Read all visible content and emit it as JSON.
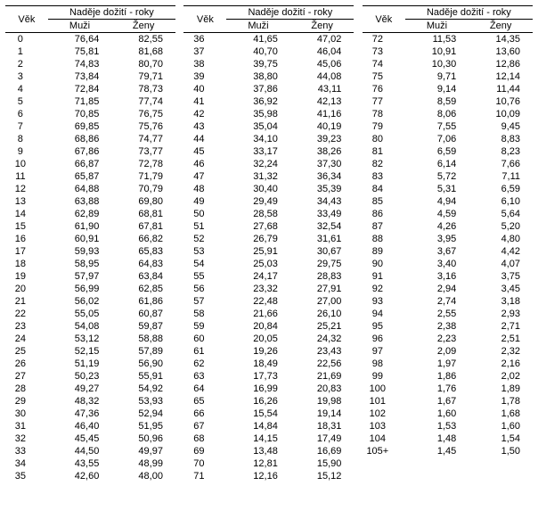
{
  "headers": {
    "age": "Věk",
    "group": "Naděje dožití - roky",
    "male": "Muži",
    "female": "Ženy"
  },
  "style": {
    "font_family": "Arial",
    "font_size_pt": 8.5,
    "border_color": "#000000",
    "background_color": "#ffffff",
    "text_color": "#000000"
  },
  "columns": [
    [
      {
        "age": "0",
        "m": "76,64",
        "f": "82,55"
      },
      {
        "age": "1",
        "m": "75,81",
        "f": "81,68"
      },
      {
        "age": "2",
        "m": "74,83",
        "f": "80,70"
      },
      {
        "age": "3",
        "m": "73,84",
        "f": "79,71"
      },
      {
        "age": "4",
        "m": "72,84",
        "f": "78,73"
      },
      {
        "age": "5",
        "m": "71,85",
        "f": "77,74"
      },
      {
        "age": "6",
        "m": "70,85",
        "f": "76,75"
      },
      {
        "age": "7",
        "m": "69,85",
        "f": "75,76"
      },
      {
        "age": "8",
        "m": "68,86",
        "f": "74,77"
      },
      {
        "age": "9",
        "m": "67,86",
        "f": "73,77"
      },
      {
        "age": "10",
        "m": "66,87",
        "f": "72,78"
      },
      {
        "age": "11",
        "m": "65,87",
        "f": "71,79"
      },
      {
        "age": "12",
        "m": "64,88",
        "f": "70,79"
      },
      {
        "age": "13",
        "m": "63,88",
        "f": "69,80"
      },
      {
        "age": "14",
        "m": "62,89",
        "f": "68,81"
      },
      {
        "age": "15",
        "m": "61,90",
        "f": "67,81"
      },
      {
        "age": "16",
        "m": "60,91",
        "f": "66,82"
      },
      {
        "age": "17",
        "m": "59,93",
        "f": "65,83"
      },
      {
        "age": "18",
        "m": "58,95",
        "f": "64,83"
      },
      {
        "age": "19",
        "m": "57,97",
        "f": "63,84"
      },
      {
        "age": "20",
        "m": "56,99",
        "f": "62,85"
      },
      {
        "age": "21",
        "m": "56,02",
        "f": "61,86"
      },
      {
        "age": "22",
        "m": "55,05",
        "f": "60,87"
      },
      {
        "age": "23",
        "m": "54,08",
        "f": "59,87"
      },
      {
        "age": "24",
        "m": "53,12",
        "f": "58,88"
      },
      {
        "age": "25",
        "m": "52,15",
        "f": "57,89"
      },
      {
        "age": "26",
        "m": "51,19",
        "f": "56,90"
      },
      {
        "age": "27",
        "m": "50,23",
        "f": "55,91"
      },
      {
        "age": "28",
        "m": "49,27",
        "f": "54,92"
      },
      {
        "age": "29",
        "m": "48,32",
        "f": "53,93"
      },
      {
        "age": "30",
        "m": "47,36",
        "f": "52,94"
      },
      {
        "age": "31",
        "m": "46,40",
        "f": "51,95"
      },
      {
        "age": "32",
        "m": "45,45",
        "f": "50,96"
      },
      {
        "age": "33",
        "m": "44,50",
        "f": "49,97"
      },
      {
        "age": "34",
        "m": "43,55",
        "f": "48,99"
      },
      {
        "age": "35",
        "m": "42,60",
        "f": "48,00"
      }
    ],
    [
      {
        "age": "36",
        "m": "41,65",
        "f": "47,02"
      },
      {
        "age": "37",
        "m": "40,70",
        "f": "46,04"
      },
      {
        "age": "38",
        "m": "39,75",
        "f": "45,06"
      },
      {
        "age": "39",
        "m": "38,80",
        "f": "44,08"
      },
      {
        "age": "40",
        "m": "37,86",
        "f": "43,11"
      },
      {
        "age": "41",
        "m": "36,92",
        "f": "42,13"
      },
      {
        "age": "42",
        "m": "35,98",
        "f": "41,16"
      },
      {
        "age": "43",
        "m": "35,04",
        "f": "40,19"
      },
      {
        "age": "44",
        "m": "34,10",
        "f": "39,23"
      },
      {
        "age": "45",
        "m": "33,17",
        "f": "38,26"
      },
      {
        "age": "46",
        "m": "32,24",
        "f": "37,30"
      },
      {
        "age": "47",
        "m": "31,32",
        "f": "36,34"
      },
      {
        "age": "48",
        "m": "30,40",
        "f": "35,39"
      },
      {
        "age": "49",
        "m": "29,49",
        "f": "34,43"
      },
      {
        "age": "50",
        "m": "28,58",
        "f": "33,49"
      },
      {
        "age": "51",
        "m": "27,68",
        "f": "32,54"
      },
      {
        "age": "52",
        "m": "26,79",
        "f": "31,61"
      },
      {
        "age": "53",
        "m": "25,91",
        "f": "30,67"
      },
      {
        "age": "54",
        "m": "25,03",
        "f": "29,75"
      },
      {
        "age": "55",
        "m": "24,17",
        "f": "28,83"
      },
      {
        "age": "56",
        "m": "23,32",
        "f": "27,91"
      },
      {
        "age": "57",
        "m": "22,48",
        "f": "27,00"
      },
      {
        "age": "58",
        "m": "21,66",
        "f": "26,10"
      },
      {
        "age": "59",
        "m": "20,84",
        "f": "25,21"
      },
      {
        "age": "60",
        "m": "20,05",
        "f": "24,32"
      },
      {
        "age": "61",
        "m": "19,26",
        "f": "23,43"
      },
      {
        "age": "62",
        "m": "18,49",
        "f": "22,56"
      },
      {
        "age": "63",
        "m": "17,73",
        "f": "21,69"
      },
      {
        "age": "64",
        "m": "16,99",
        "f": "20,83"
      },
      {
        "age": "65",
        "m": "16,26",
        "f": "19,98"
      },
      {
        "age": "66",
        "m": "15,54",
        "f": "19,14"
      },
      {
        "age": "67",
        "m": "14,84",
        "f": "18,31"
      },
      {
        "age": "68",
        "m": "14,15",
        "f": "17,49"
      },
      {
        "age": "69",
        "m": "13,48",
        "f": "16,69"
      },
      {
        "age": "70",
        "m": "12,81",
        "f": "15,90"
      },
      {
        "age": "71",
        "m": "12,16",
        "f": "15,12"
      }
    ],
    [
      {
        "age": "72",
        "m": "11,53",
        "f": "14,35"
      },
      {
        "age": "73",
        "m": "10,91",
        "f": "13,60"
      },
      {
        "age": "74",
        "m": "10,30",
        "f": "12,86"
      },
      {
        "age": "75",
        "m": "9,71",
        "f": "12,14"
      },
      {
        "age": "76",
        "m": "9,14",
        "f": "11,44"
      },
      {
        "age": "77",
        "m": "8,59",
        "f": "10,76"
      },
      {
        "age": "78",
        "m": "8,06",
        "f": "10,09"
      },
      {
        "age": "79",
        "m": "7,55",
        "f": "9,45"
      },
      {
        "age": "80",
        "m": "7,06",
        "f": "8,83"
      },
      {
        "age": "81",
        "m": "6,59",
        "f": "8,23"
      },
      {
        "age": "82",
        "m": "6,14",
        "f": "7,66"
      },
      {
        "age": "83",
        "m": "5,72",
        "f": "7,11"
      },
      {
        "age": "84",
        "m": "5,31",
        "f": "6,59"
      },
      {
        "age": "85",
        "m": "4,94",
        "f": "6,10"
      },
      {
        "age": "86",
        "m": "4,59",
        "f": "5,64"
      },
      {
        "age": "87",
        "m": "4,26",
        "f": "5,20"
      },
      {
        "age": "88",
        "m": "3,95",
        "f": "4,80"
      },
      {
        "age": "89",
        "m": "3,67",
        "f": "4,42"
      },
      {
        "age": "90",
        "m": "3,40",
        "f": "4,07"
      },
      {
        "age": "91",
        "m": "3,16",
        "f": "3,75"
      },
      {
        "age": "92",
        "m": "2,94",
        "f": "3,45"
      },
      {
        "age": "93",
        "m": "2,74",
        "f": "3,18"
      },
      {
        "age": "94",
        "m": "2,55",
        "f": "2,93"
      },
      {
        "age": "95",
        "m": "2,38",
        "f": "2,71"
      },
      {
        "age": "96",
        "m": "2,23",
        "f": "2,51"
      },
      {
        "age": "97",
        "m": "2,09",
        "f": "2,32"
      },
      {
        "age": "98",
        "m": "1,97",
        "f": "2,16"
      },
      {
        "age": "99",
        "m": "1,86",
        "f": "2,02"
      },
      {
        "age": "100",
        "m": "1,76",
        "f": "1,89"
      },
      {
        "age": "101",
        "m": "1,67",
        "f": "1,78"
      },
      {
        "age": "102",
        "m": "1,60",
        "f": "1,68"
      },
      {
        "age": "103",
        "m": "1,53",
        "f": "1,60"
      },
      {
        "age": "104",
        "m": "1,48",
        "f": "1,54"
      },
      {
        "age": "105+",
        "m": "1,45",
        "f": "1,50"
      },
      {
        "age": "",
        "m": "",
        "f": ""
      },
      {
        "age": "",
        "m": "",
        "f": ""
      }
    ]
  ]
}
